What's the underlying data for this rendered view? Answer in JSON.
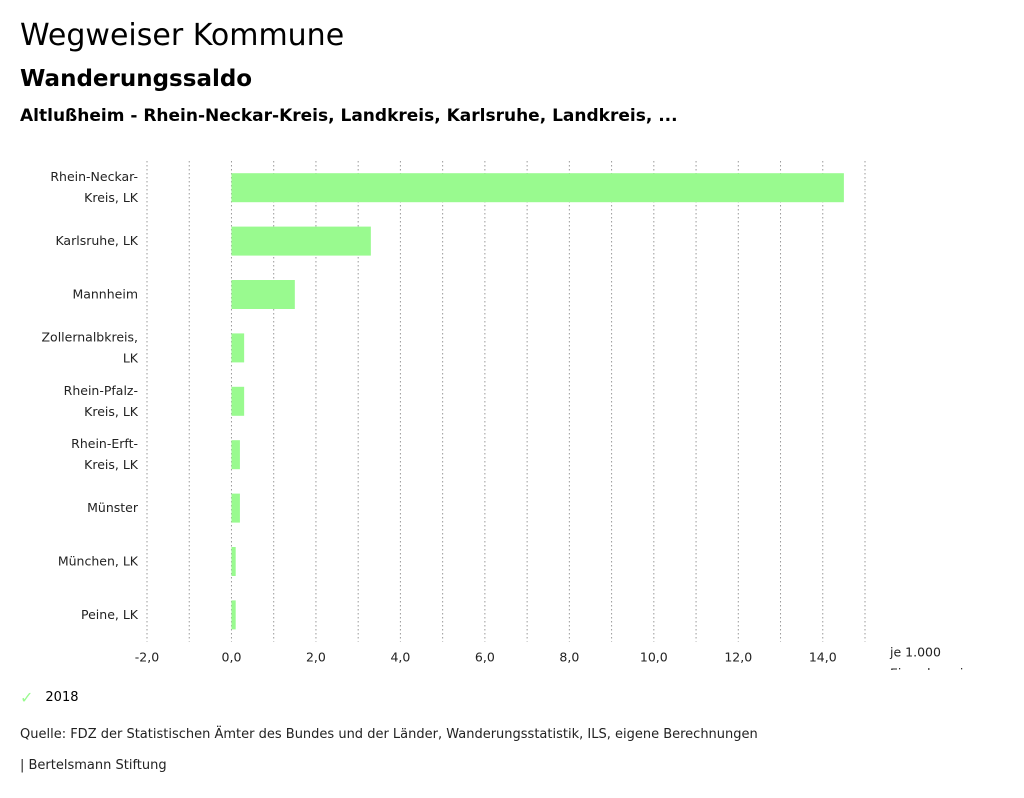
{
  "header": {
    "title": "Wegweiser Kommune",
    "subtitle": "Wanderungssaldo",
    "region": "Altlußheim - Rhein-Neckar-Kreis, Landkreis, Karlsruhe, Landkreis, ..."
  },
  "chart_data": {
    "type": "bar",
    "orientation": "horizontal",
    "categories": [
      [
        "Rhein-Neckar-",
        "Kreis, LK"
      ],
      [
        "Karlsruhe, LK"
      ],
      [
        "Mannheim"
      ],
      [
        "Zollernalbkreis,",
        "LK"
      ],
      [
        "Rhein-Pfalz-",
        "Kreis, LK"
      ],
      [
        "Rhein-Erft-",
        "Kreis, LK"
      ],
      [
        "Münster"
      ],
      [
        "München, LK"
      ],
      [
        "Peine, LK"
      ]
    ],
    "series": [
      {
        "name": "2018",
        "values": [
          14.5,
          3.3,
          1.5,
          0.3,
          0.3,
          0.2,
          0.2,
          0.1,
          0.1
        ],
        "color": "#99fa8f"
      }
    ],
    "xlim": [
      -2,
      15
    ],
    "xticks": [
      -2,
      0,
      2,
      4,
      6,
      8,
      10,
      12,
      14
    ],
    "xtick_labels": [
      "-2,0",
      "0,0",
      "2,0",
      "4,0",
      "6,0",
      "8,0",
      "10,0",
      "12,0",
      "14,0"
    ],
    "unit_label": [
      "je 1.000",
      "Einwohner:innen"
    ],
    "grid": "vertical-dotted",
    "legend": "bottom-left"
  },
  "legend": {
    "label": "2018"
  },
  "footer": {
    "source": "Quelle: FDZ der Statistischen Ämter des Bundes und der Länder, Wanderungsstatistik, ILS, eigene Berechnungen",
    "brand": "| Bertelsmann Stiftung"
  }
}
